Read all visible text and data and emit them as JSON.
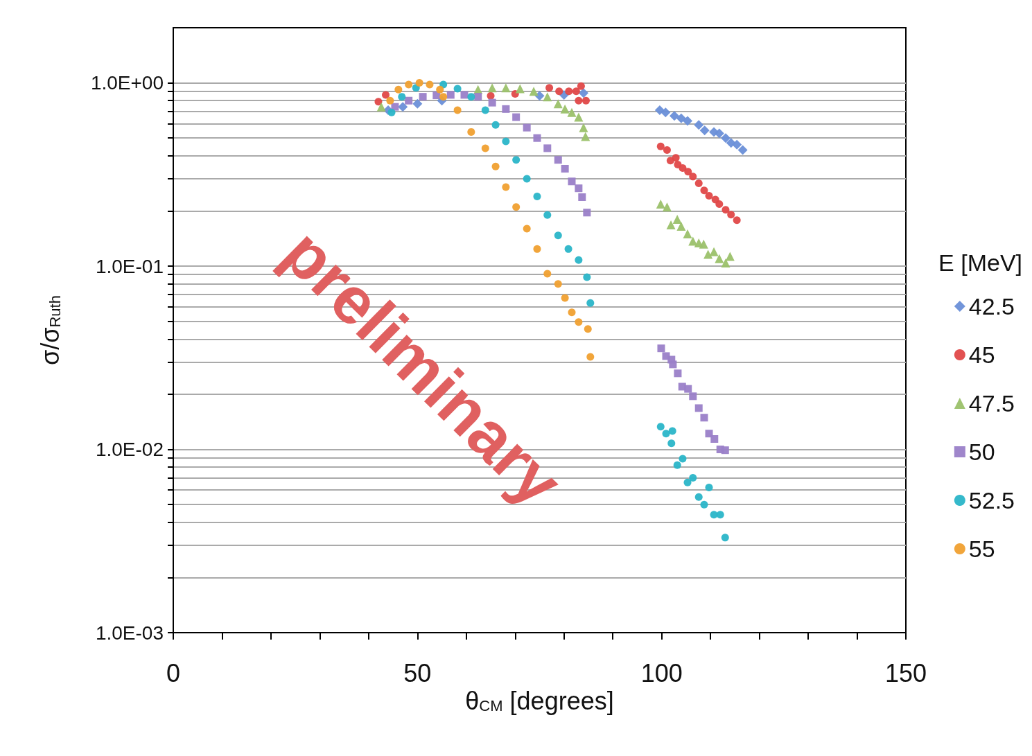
{
  "chart_data": {
    "type": "scatter",
    "xlabel": "θ$_{CM}$ [degrees]",
    "ylabel": "σ/σ$_{Ruth}$",
    "legend_title": "E [MeV]",
    "legend": "right",
    "log": "y",
    "grid": "y",
    "annotations": [
      "preliminary"
    ],
    "xlim": [
      0,
      150
    ],
    "xticks": [
      0,
      {
        "value": 10,
        "label": null
      },
      {
        "value": 20,
        "label": null
      },
      {
        "value": 30,
        "label": null
      },
      {
        "value": 40,
        "label": null
      },
      50,
      {
        "value": 60,
        "label": null
      },
      {
        "value": 70,
        "label": null
      },
      {
        "value": 80,
        "label": null
      },
      {
        "value": 90,
        "label": null
      },
      100,
      {
        "value": 110,
        "label": null
      },
      {
        "value": 120,
        "label": null
      },
      {
        "value": 130,
        "label": null
      },
      {
        "value": 140,
        "label": null
      },
      150
    ],
    "ylim": [
      0.001,
      2
    ],
    "yticks": [
      {
        "value": 0.001,
        "label": "1.0E-03"
      },
      {
        "value": 0.002,
        "label": null
      },
      {
        "value": 0.003,
        "label": null
      },
      {
        "value": 0.004,
        "label": null
      },
      {
        "value": 0.005,
        "label": null
      },
      {
        "value": 0.006,
        "label": null
      },
      {
        "value": 0.007,
        "label": null
      },
      {
        "value": 0.008,
        "label": null
      },
      {
        "value": 0.009,
        "label": null
      },
      {
        "value": 0.01,
        "label": "1.0E-02"
      },
      {
        "value": 0.02,
        "label": null
      },
      {
        "value": 0.03,
        "label": null
      },
      {
        "value": 0.04,
        "label": null
      },
      {
        "value": 0.05,
        "label": null
      },
      {
        "value": 0.06,
        "label": null
      },
      {
        "value": 0.07,
        "label": null
      },
      {
        "value": 0.08,
        "label": null
      },
      {
        "value": 0.09,
        "label": null
      },
      {
        "value": 0.1,
        "label": "1.0E-01"
      },
      {
        "value": 0.2,
        "label": null
      },
      {
        "value": 0.3,
        "label": null
      },
      {
        "value": 0.4,
        "label": null
      },
      {
        "value": 0.5,
        "label": null
      },
      {
        "value": 0.6,
        "label": null
      },
      {
        "value": 0.7,
        "label": null
      },
      {
        "value": 0.8,
        "label": null
      },
      {
        "value": 0.9,
        "label": null
      },
      {
        "value": 1,
        "label": "1.0E+00"
      }
    ],
    "series": [
      {
        "name": "42.5",
        "color": "#6a8fd8",
        "marker": "diamond",
        "x": [
          44,
          47,
          50,
          55,
          75,
          80,
          84,
          99.6,
          100.8,
          102.6,
          104.0,
          105.3,
          107.6,
          108.8,
          110.7,
          111.8,
          113.1,
          114.2,
          115.4,
          116.6
        ],
        "values": [
          0.71,
          0.74,
          0.77,
          0.8,
          0.85,
          0.86,
          0.88,
          0.71,
          0.69,
          0.66,
          0.64,
          0.62,
          0.59,
          0.55,
          0.54,
          0.53,
          0.5,
          0.47,
          0.46,
          0.43
        ]
      },
      {
        "name": "45",
        "color": "#e04848",
        "marker": "circle",
        "x": [
          42,
          43.5,
          65,
          70,
          77,
          79,
          81,
          82.5,
          83.5,
          83,
          84.5,
          99.8,
          101.1,
          101.8,
          102.9,
          103.3,
          104.3,
          105.4,
          106.4,
          107.6,
          108.7,
          109.7,
          111.0,
          111.8,
          113.1,
          114.2,
          115.4
        ],
        "values": [
          0.79,
          0.86,
          0.85,
          0.87,
          0.94,
          0.9,
          0.9,
          0.9,
          0.96,
          0.8,
          0.8,
          0.45,
          0.43,
          0.377,
          0.39,
          0.358,
          0.343,
          0.328,
          0.308,
          0.283,
          0.259,
          0.242,
          0.231,
          0.218,
          0.203,
          0.191,
          0.178
        ]
      },
      {
        "name": "47.5",
        "color": "#9bc16a",
        "marker": "triangle",
        "x": [
          42.6,
          62.4,
          65.3,
          68.1,
          71,
          73.8,
          76.6,
          78.8,
          80.2,
          81.6,
          83,
          84,
          84.4,
          99.8,
          101.1,
          101.9,
          103.2,
          104.0,
          105.3,
          106.4,
          107.6,
          108.6,
          109.5,
          110.7,
          111.8,
          113.1,
          114.0
        ],
        "values": [
          0.74,
          0.92,
          0.94,
          0.94,
          0.93,
          0.9,
          0.84,
          0.77,
          0.72,
          0.69,
          0.65,
          0.57,
          0.51,
          0.218,
          0.21,
          0.168,
          0.18,
          0.165,
          0.15,
          0.137,
          0.134,
          0.132,
          0.116,
          0.12,
          0.11,
          0.104,
          0.113
        ]
      },
      {
        "name": "50",
        "color": "#9a80c8",
        "marker": "square",
        "x": [
          45.4,
          48.2,
          51.1,
          53.9,
          56.8,
          59.6,
          62.4,
          65.3,
          68.1,
          70.2,
          72.4,
          74.5,
          76.6,
          78.8,
          80.2,
          81.6,
          83,
          83.7,
          84.7,
          99.9,
          100.9,
          102.0,
          102.3,
          103.3,
          104.2,
          105.4,
          106.4,
          107.6,
          108.7,
          109.7,
          110.8,
          112.0,
          113.0
        ],
        "values": [
          0.74,
          0.8,
          0.84,
          0.855,
          0.86,
          0.86,
          0.84,
          0.78,
          0.72,
          0.65,
          0.57,
          0.5,
          0.44,
          0.38,
          0.34,
          0.29,
          0.266,
          0.238,
          0.196,
          0.0356,
          0.0323,
          0.0309,
          0.0291,
          0.026,
          0.022,
          0.0214,
          0.0195,
          0.0168,
          0.0149,
          0.0122,
          0.0114,
          0.01,
          0.0099
        ]
      },
      {
        "name": "52.5",
        "color": "#2ab5c8",
        "marker": "circle",
        "x": [
          44.7,
          46.8,
          49.7,
          55.3,
          58.2,
          61,
          63.9,
          66,
          68.1,
          70.2,
          72.4,
          74.5,
          76.6,
          78.8,
          80.9,
          83,
          84.7,
          85.4,
          99.8,
          100.9,
          102.2,
          102.0,
          104.3,
          103.2,
          105.3,
          106.4,
          107.6,
          108.7,
          109.7,
          110.7,
          112.0,
          113.0
        ],
        "values": [
          0.69,
          0.84,
          0.94,
          0.98,
          0.93,
          0.84,
          0.71,
          0.59,
          0.48,
          0.38,
          0.3,
          0.24,
          0.19,
          0.147,
          0.124,
          0.108,
          0.087,
          0.063,
          0.0133,
          0.0122,
          0.0126,
          0.0108,
          0.0089,
          0.0082,
          0.0066,
          0.007,
          0.0055,
          0.005,
          0.0062,
          0.0044,
          0.0044,
          0.0033
        ]
      },
      {
        "name": "55",
        "color": "#f0a030",
        "marker": "circle",
        "x": [
          44.4,
          46.1,
          48.2,
          50.4,
          52.5,
          54.6,
          55.3,
          58.2,
          61,
          63.9,
          66,
          68.1,
          70.2,
          72.4,
          74.5,
          76.6,
          78.8,
          80.2,
          81.6,
          83,
          84.9,
          85.4
        ],
        "values": [
          0.8,
          0.92,
          0.98,
          1.0,
          0.98,
          0.92,
          0.84,
          0.71,
          0.54,
          0.44,
          0.35,
          0.27,
          0.21,
          0.16,
          0.124,
          0.091,
          0.08,
          0.067,
          0.056,
          0.0495,
          0.0454,
          0.032
        ]
      }
    ]
  }
}
